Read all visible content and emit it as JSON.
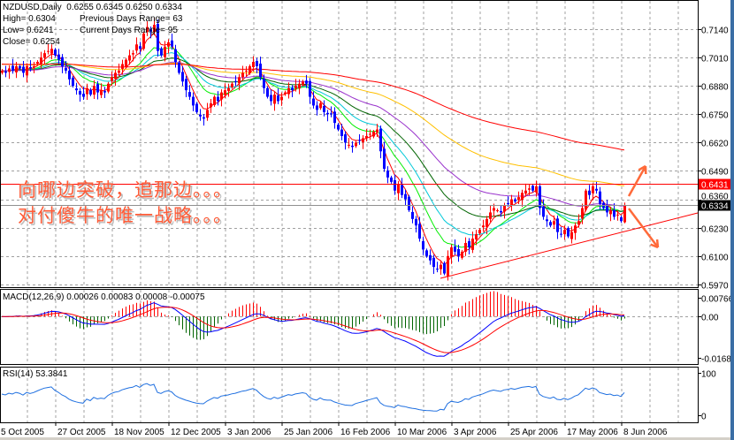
{
  "header": {
    "symbol_line": "NZDUSD,Daily  0.6255 0.6345 0.6250 0.6334",
    "high": "High= 0.6304",
    "low": "Low= 0.6241",
    "close": "Close= 0.6254",
    "prev_range": "Previous Days Range= 63",
    "curr_range": "Current Days Range= 95"
  },
  "annotation": {
    "line1": "向哪边突破，追那边。。。",
    "line2": "对付傻牛的唯一战略。。。"
  },
  "chart_data": [
    {
      "type": "candlestick",
      "symbol": "NZDUSD",
      "timeframe": "Daily",
      "ylim": [
        0.597,
        0.714
      ],
      "y_ticks": [
        "0.7140",
        "0.7010",
        "0.6880",
        "0.6750",
        "0.6620",
        "0.6490",
        "0.6360",
        "0.6230",
        "0.6100",
        "0.5970"
      ],
      "x_ticks": [
        "5 Oct 2005",
        "27 Oct 2005",
        "18 Nov 2005",
        "12 Dec 2005",
        "3 Jan 2006",
        "25 Jan 2006",
        "16 Feb 2006",
        "10 Mar 2006",
        "3 Apr 2006",
        "25 Apr 2006",
        "17 May 2006",
        "8 Jun 2006"
      ],
      "last_ohlc": {
        "open": 0.6255,
        "high": 0.6345,
        "low": 0.625,
        "close": 0.6334
      },
      "horizontal_line": {
        "price": 0.6431,
        "label": "0.6431",
        "color": "#ff0000"
      },
      "current_price": {
        "price": 0.6334,
        "label": "0.6334"
      },
      "up_color": "#ff0000",
      "down_color": "#0000ff",
      "moving_averages": [
        {
          "period": 5,
          "color": "#ff0000"
        },
        {
          "period": 13,
          "color": "#00ee00"
        },
        {
          "period": 21,
          "color": "#00c8d8"
        },
        {
          "period": 34,
          "color": "#006400"
        },
        {
          "period": 55,
          "color": "#9932cc"
        },
        {
          "period": 100,
          "color": "#ffc000"
        },
        {
          "period": 200,
          "color": "#ff0000"
        }
      ],
      "closes": [
        0.695,
        0.694,
        0.696,
        0.695,
        0.697,
        0.696,
        0.694,
        0.697,
        0.696,
        0.697,
        0.699,
        0.701,
        0.703,
        0.704,
        0.705,
        0.702,
        0.7,
        0.697,
        0.695,
        0.691,
        0.688,
        0.686,
        0.684,
        0.683,
        0.687,
        0.684,
        0.688,
        0.685,
        0.686,
        0.685,
        0.689,
        0.692,
        0.694,
        0.695,
        0.698,
        0.7,
        0.702,
        0.703,
        0.707,
        0.705,
        0.712,
        0.715,
        0.713,
        0.716,
        0.704,
        0.702,
        0.706,
        0.708,
        0.706,
        0.699,
        0.694,
        0.69,
        0.686,
        0.683,
        0.679,
        0.676,
        0.674,
        0.673,
        0.677,
        0.68,
        0.683,
        0.681,
        0.685,
        0.686,
        0.687,
        0.689,
        0.69,
        0.692,
        0.694,
        0.695,
        0.697,
        0.699,
        0.697,
        0.692,
        0.687,
        0.683,
        0.681,
        0.684,
        0.681,
        0.683,
        0.685,
        0.687,
        0.686,
        0.688,
        0.689,
        0.69,
        0.689,
        0.683,
        0.679,
        0.677,
        0.68,
        0.676,
        0.675,
        0.675,
        0.671,
        0.668,
        0.665,
        0.662,
        0.661,
        0.66,
        0.662,
        0.663,
        0.664,
        0.665,
        0.666,
        0.667,
        0.668,
        0.658,
        0.65,
        0.646,
        0.644,
        0.64,
        0.643,
        0.638,
        0.636,
        0.631,
        0.627,
        0.624,
        0.618,
        0.613,
        0.61,
        0.608,
        0.605,
        0.604,
        0.606,
        0.602,
        0.61,
        0.614,
        0.612,
        0.61,
        0.612,
        0.616,
        0.614,
        0.618,
        0.62,
        0.622,
        0.624,
        0.627,
        0.63,
        0.632,
        0.631,
        0.63,
        0.633,
        0.634,
        0.636,
        0.635,
        0.637,
        0.639,
        0.64,
        0.641,
        0.64,
        0.642,
        0.632,
        0.628,
        0.626,
        0.624,
        0.626,
        0.621,
        0.62,
        0.622,
        0.619,
        0.621,
        0.624,
        0.626,
        0.632,
        0.64,
        0.638,
        0.642,
        0.64,
        0.634,
        0.632,
        0.63,
        0.631,
        0.628,
        0.629,
        0.626,
        0.6334
      ]
    },
    {
      "type": "line",
      "title": "MACD(12,26,9) 0.00026 0.00083 0.00008 -0.00075",
      "y_ticks": [
        "0.00766",
        "0.00",
        "-0.01687"
      ],
      "ylim": [
        -0.01687,
        0.00766
      ],
      "macd_color": "#0000ff",
      "signal_color": "#ff0000"
    },
    {
      "type": "line",
      "title": "RSI(14) 53.3841",
      "y_ticks": [
        "100",
        "0"
      ],
      "ylim": [
        0,
        100
      ],
      "color": "#1e6fe0"
    }
  ]
}
